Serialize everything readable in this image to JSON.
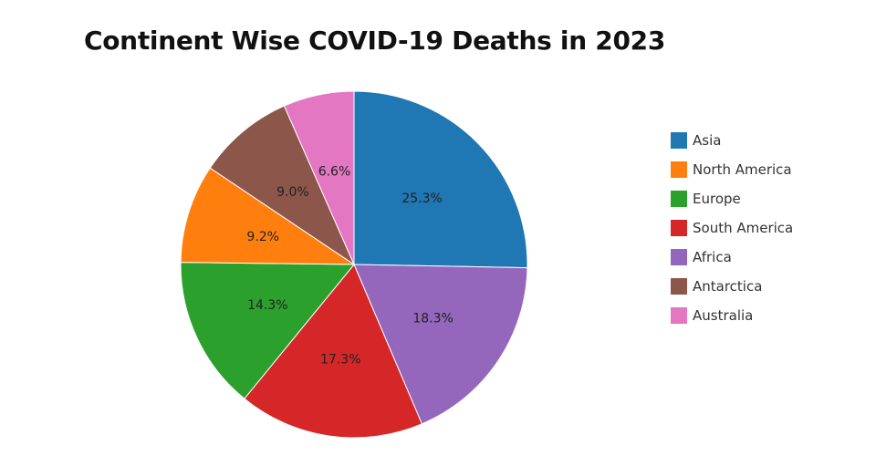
{
  "chart_data": {
    "type": "pie",
    "title": "Continent Wise COVID-19 Deaths in 2023",
    "slices": [
      {
        "label": "Asia",
        "percent": 25.3,
        "display": "25.3%",
        "color": "#1f77b4"
      },
      {
        "label": "Africa",
        "percent": 18.3,
        "display": "18.3%",
        "color": "#9467bd"
      },
      {
        "label": "South America",
        "percent": 17.3,
        "display": "17.3%",
        "color": "#d62728"
      },
      {
        "label": "Europe",
        "percent": 14.3,
        "display": "14.3%",
        "color": "#2ca02c"
      },
      {
        "label": "North America",
        "percent": 9.2,
        "display": "9.2%",
        "color": "#ff7f0e"
      },
      {
        "label": "Antarctica",
        "percent": 9.0,
        "display": "9.0%",
        "color": "#8c564b"
      },
      {
        "label": "Australia",
        "percent": 6.6,
        "display": "6.6%",
        "color": "#e377c2"
      }
    ],
    "legend": {
      "position": "right",
      "items": [
        {
          "label": "Asia",
          "color": "#1f77b4"
        },
        {
          "label": "North America",
          "color": "#ff7f0e"
        },
        {
          "label": "Europe",
          "color": "#2ca02c"
        },
        {
          "label": "South America",
          "color": "#d62728"
        },
        {
          "label": "Africa",
          "color": "#9467bd"
        },
        {
          "label": "Antarctica",
          "color": "#8c564b"
        },
        {
          "label": "Australia",
          "color": "#e377c2"
        }
      ]
    }
  }
}
